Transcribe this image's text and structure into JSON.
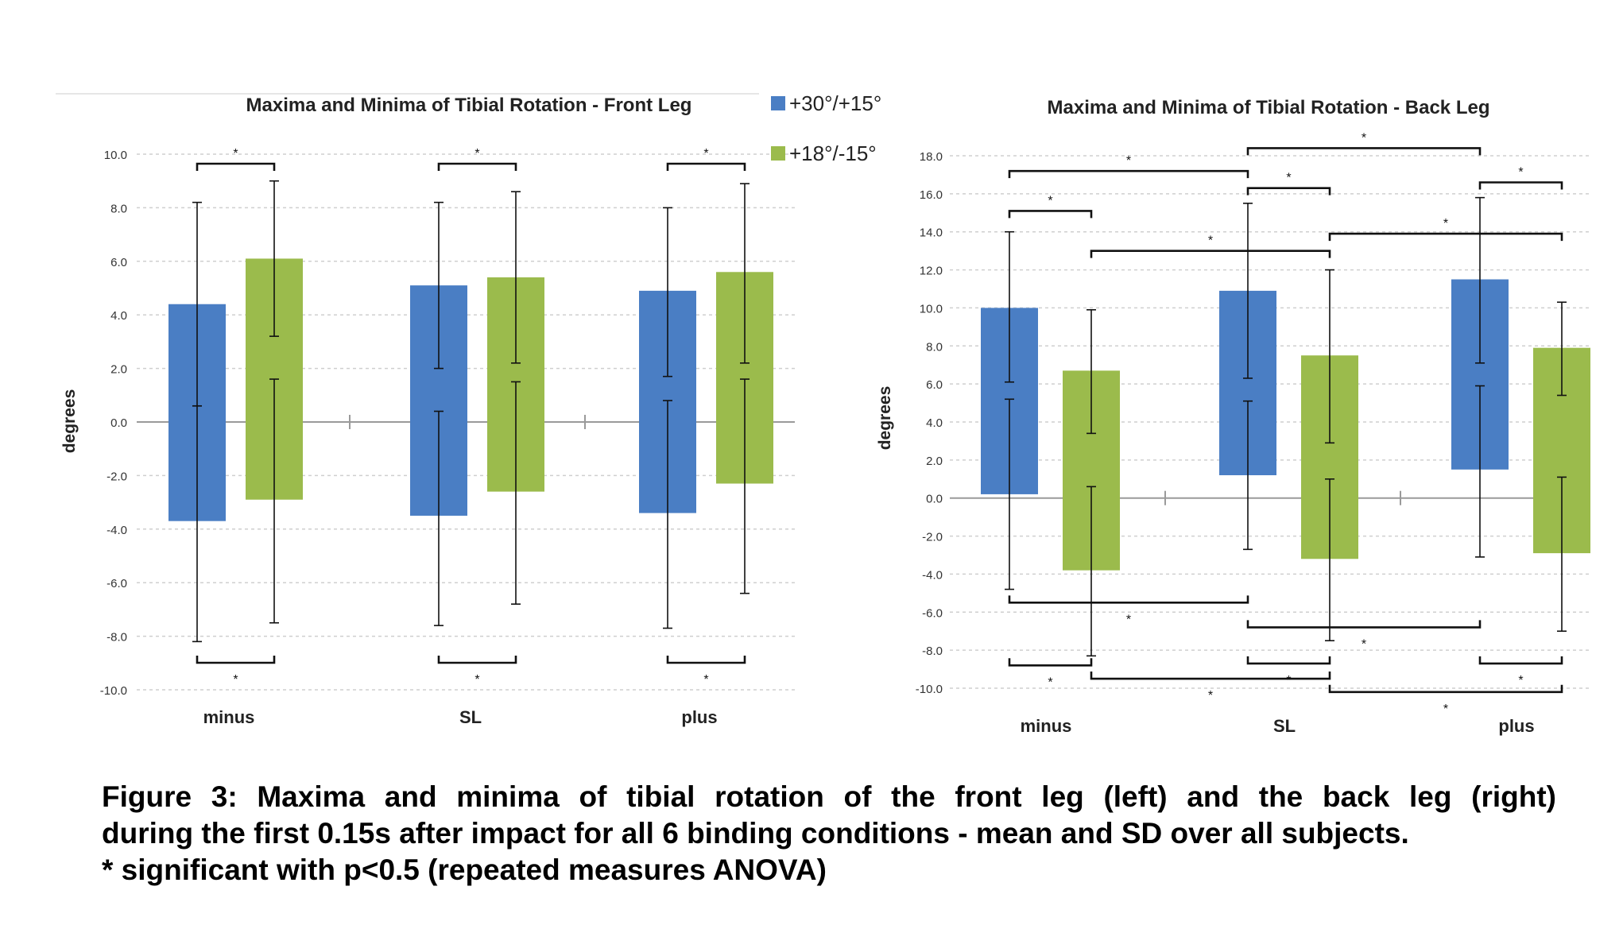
{
  "colors": {
    "series1": "#4a7ec4",
    "series2": "#9bbb4c",
    "axis": "#000000",
    "grid": "#cfcfcf",
    "zero": "#9a9a9a"
  },
  "legend": {
    "position": "between charts",
    "items": [
      "+30°/+15°",
      "+18°/-15°"
    ]
  },
  "chart_data": [
    {
      "type": "bar",
      "title": "Maxima and Minima of Tibial Rotation - Front Leg",
      "xlabel": "",
      "ylabel": "degrees",
      "ylim": [
        -10,
        10
      ],
      "y_ticks": [
        "10.0",
        "8.0",
        "6.0",
        "4.0",
        "2.0",
        "0.0",
        "-2.0",
        "-4.0",
        "-6.0",
        "-8.0",
        "-10.0"
      ],
      "categories": [
        "minus",
        "SL",
        "plus"
      ],
      "grid": "horizontal dashed",
      "series": [
        {
          "name": "+30°/+15°",
          "max": [
            4.4,
            5.1,
            4.9
          ],
          "max_sd_low": [
            0.6,
            2.0,
            1.7
          ],
          "min": [
            -3.7,
            -3.5,
            -3.4
          ],
          "min_sd_high": [
            0.6,
            0.4,
            0.8
          ],
          "whisker_top": [
            8.2,
            8.2,
            8.0
          ],
          "whisker_bottom": [
            -8.2,
            -7.6,
            -7.7
          ]
        },
        {
          "name": "+18°/-15°",
          "max": [
            6.1,
            5.4,
            5.6
          ],
          "max_sd_low": [
            3.2,
            2.2,
            2.2
          ],
          "min": [
            -2.9,
            -2.6,
            -2.3
          ],
          "min_sd_high": [
            1.6,
            1.5,
            1.6
          ],
          "whisker_top": [
            9.0,
            8.6,
            8.9
          ],
          "whisker_bottom": [
            -7.5,
            -6.8,
            -6.4
          ]
        }
      ],
      "significance_top": [
        {
          "from": [
            0,
            0
          ],
          "to": [
            0,
            1
          ],
          "label": "*"
        },
        {
          "from": [
            1,
            0
          ],
          "to": [
            1,
            1
          ],
          "label": "*"
        },
        {
          "from": [
            2,
            0
          ],
          "to": [
            2,
            1
          ],
          "label": "*"
        }
      ],
      "significance_bottom": [
        {
          "from": [
            0,
            0
          ],
          "to": [
            0,
            1
          ],
          "label": "*"
        },
        {
          "from": [
            1,
            0
          ],
          "to": [
            1,
            1
          ],
          "label": "*"
        },
        {
          "from": [
            2,
            0
          ],
          "to": [
            2,
            1
          ],
          "label": "*"
        }
      ]
    },
    {
      "type": "bar",
      "title": "Maxima and Minima of Tibial Rotation - Back Leg",
      "xlabel": "",
      "ylabel": "degrees",
      "ylim": [
        -10,
        18
      ],
      "y_ticks": [
        "18.0",
        "16.0",
        "14.0",
        "12.0",
        "10.0",
        "8.0",
        "6.0",
        "4.0",
        "2.0",
        "0.0",
        "-2.0",
        "-4.0",
        "-6.0",
        "-8.0",
        "-10.0"
      ],
      "categories": [
        "minus",
        "SL",
        "plus"
      ],
      "grid": "horizontal dashed",
      "series": [
        {
          "name": "+30°/+15°",
          "max": [
            10.0,
            10.9,
            11.5
          ],
          "max_sd_low": [
            6.1,
            6.3,
            7.1
          ],
          "min": [
            0.2,
            1.2,
            1.5
          ],
          "min_sd_high": [
            5.2,
            5.1,
            5.9
          ],
          "whisker_top": [
            14.0,
            15.5,
            15.8
          ],
          "whisker_bottom": [
            -4.8,
            -2.7,
            -3.1
          ]
        },
        {
          "name": "+18°/-15°",
          "max": [
            6.7,
            7.5,
            7.9
          ],
          "max_sd_low": [
            3.4,
            2.9,
            5.4
          ],
          "min": [
            -3.8,
            -3.2,
            -2.9
          ],
          "min_sd_high": [
            0.6,
            1.0,
            1.1
          ],
          "whisker_top": [
            9.9,
            12.0,
            10.3
          ],
          "whisker_bottom": [
            -8.3,
            -7.5,
            -7.0
          ]
        }
      ],
      "significance_top": [
        {
          "from": [
            1,
            0
          ],
          "to": [
            2,
            0
          ],
          "level": 18.4,
          "label": "*"
        },
        {
          "from": [
            0,
            0
          ],
          "to": [
            1,
            0
          ],
          "level": 17.2,
          "label": "*"
        },
        {
          "from": [
            1,
            0
          ],
          "to": [
            1,
            1
          ],
          "level": 16.3,
          "label": "*"
        },
        {
          "from": [
            2,
            0
          ],
          "to": [
            2,
            1
          ],
          "level": 16.6,
          "label": "*"
        },
        {
          "from": [
            0,
            0
          ],
          "to": [
            0,
            1
          ],
          "level": 15.1,
          "label": "*"
        },
        {
          "from": [
            1,
            1
          ],
          "to": [
            2,
            1
          ],
          "level": 13.9,
          "label": "*"
        },
        {
          "from": [
            0,
            1
          ],
          "to": [
            1,
            1
          ],
          "level": 13.0,
          "label": "*"
        }
      ],
      "significance_bottom": [
        {
          "from": [
            0,
            0
          ],
          "to": [
            1,
            0
          ],
          "level": -5.5,
          "label": "*"
        },
        {
          "from": [
            1,
            0
          ],
          "to": [
            2,
            0
          ],
          "level": -6.8,
          "label": "*"
        },
        {
          "from": [
            0,
            0
          ],
          "to": [
            0,
            1
          ],
          "level": -8.8,
          "label": "*"
        },
        {
          "from": [
            1,
            0
          ],
          "to": [
            1,
            1
          ],
          "level": -8.7,
          "label": "*"
        },
        {
          "from": [
            2,
            0
          ],
          "to": [
            2,
            1
          ],
          "level": -8.7,
          "label": "*"
        },
        {
          "from": [
            0,
            1
          ],
          "to": [
            1,
            1
          ],
          "level": -9.5,
          "label": "*"
        },
        {
          "from": [
            1,
            1
          ],
          "to": [
            2,
            1
          ],
          "level": -10.2,
          "label": "*"
        }
      ]
    }
  ],
  "caption": {
    "line1": "Figure 3: Maxima and minima of tibial rotation of the front leg (left) and the back leg (right)",
    "line2": "during the first 0.15s after impact for all 6 binding conditions - mean and SD over all subjects.",
    "line3": "* significant with p<0.5 (repeated measures ANOVA)"
  }
}
